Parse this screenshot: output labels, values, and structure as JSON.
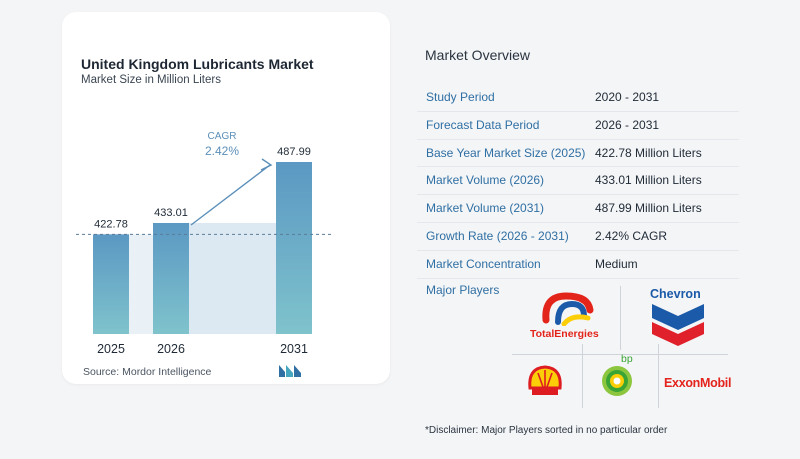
{
  "chart": {
    "title": "United Kingdom Lubricants Market",
    "subtitle": "Market Size in Million Liters",
    "cagr_label": "CAGR",
    "cagr_value": "2.42%",
    "source": "Source:  Mordor Intelligence"
  },
  "chart_data": {
    "type": "bar",
    "categories": [
      "2025",
      "2026",
      "2031"
    ],
    "values": [
      422.78,
      433.01,
      487.99
    ],
    "value_labels": [
      "422.78",
      "433.01",
      "487.99"
    ],
    "title": "United Kingdom Lubricants Market",
    "subtitle": "Market Size in Million Liters",
    "xlabel": "",
    "ylabel": "",
    "annotation": "CAGR 2.42%",
    "bar_color_top": "#5b98c3",
    "bar_color_bottom": "#7fc3cc",
    "shade_color": "#dde9f2"
  },
  "overview": {
    "title": "Market Overview",
    "rows": [
      {
        "label": "Study Period",
        "value": "2020 - 2031"
      },
      {
        "label": "Forecast Data Period",
        "value": "2026 - 2031"
      },
      {
        "label": "Base Year Market Size (2025)",
        "value": "422.78 Million Liters"
      },
      {
        "label": "Market Volume (2026)",
        "value": "433.01 Million Liters"
      },
      {
        "label": "Market Volume (2031)",
        "value": "487.99 Million Liters"
      },
      {
        "label": "Growth Rate (2026 - 2031)",
        "value": "2.42% CAGR"
      },
      {
        "label": "Market Concentration",
        "value": "Medium"
      }
    ],
    "players_label": "Major Players",
    "players": {
      "total_line1": "TotalEnergies",
      "chevron": "Chevron",
      "bp": "bp",
      "exxon": "ExxonMobil"
    },
    "disclaimer": "*Disclaimer: Major Players sorted in no particular order"
  },
  "colors": {
    "accent_blue": "#2f6fa3",
    "chevron_blue": "#1a5aa8",
    "chevron_red": "#e0202a",
    "bp_green": "#3aa535",
    "exxon_red": "#e3231c",
    "shell_yellow": "#fbce07",
    "shell_red": "#dd1d21",
    "total_red": "#e3241b"
  }
}
